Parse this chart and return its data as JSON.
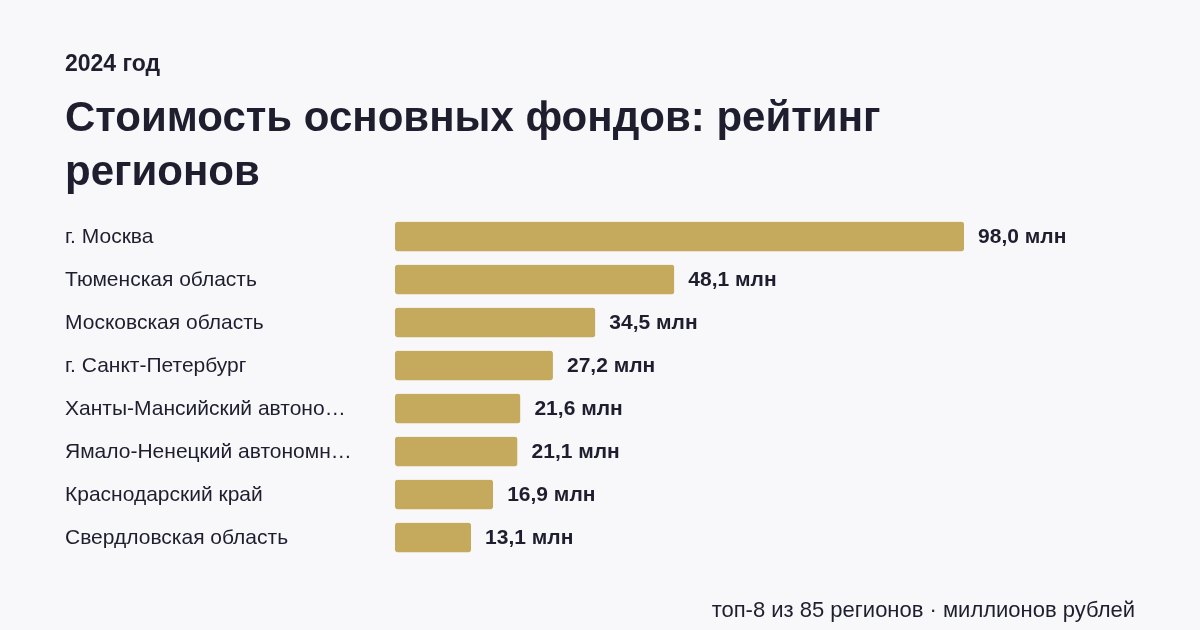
{
  "chart_data": {
    "type": "bar",
    "orientation": "horizontal",
    "subtitle": "2024 год",
    "title": "Стоимость основных фондов: рейтинг регионов",
    "categories": [
      "г. Москва",
      "Тюменская область",
      "Московская область",
      "г. Санкт-Петербург",
      "Ханты-Мансийский автоно…",
      "Ямало-Ненецкий автономн…",
      "Краснодарский край",
      "Свердловская область"
    ],
    "values": [
      98.0,
      48.1,
      34.5,
      27.2,
      21.6,
      21.1,
      16.9,
      13.1
    ],
    "value_labels": [
      "98,0 млн",
      "48,1 млн",
      "34,5 млн",
      "27,2 млн",
      "21,6 млн",
      "21,1 млн",
      "16,9 млн",
      "13,1 млн"
    ],
    "color": "#c5a95c",
    "annotations": [
      "топ-8 из 85 регионов · миллионов рублей"
    ]
  }
}
